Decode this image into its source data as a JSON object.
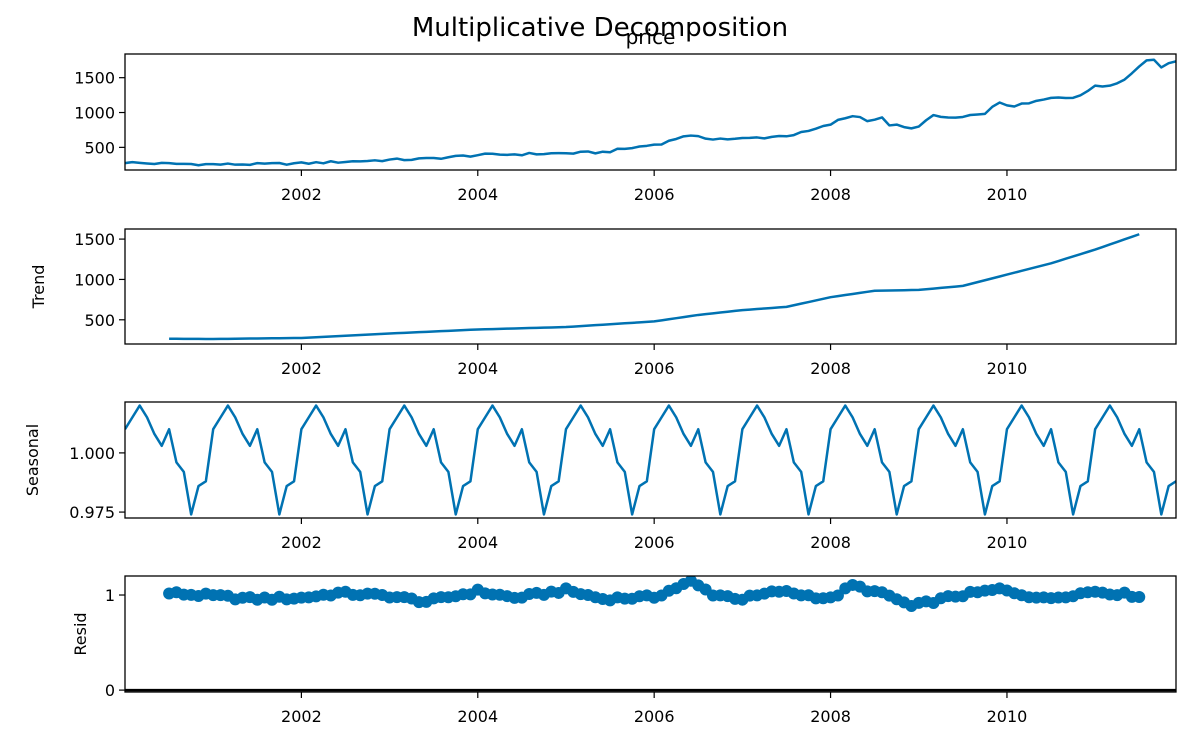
{
  "figure": {
    "suptitle": "Multiplicative Decomposition",
    "line_color": "#0072b2",
    "zero_line_color": "#000000"
  },
  "chart_data": [
    {
      "type": "line",
      "title": "price",
      "xlabel": "",
      "ylabel": "",
      "x_start": "2000-01",
      "x_end": "2011-12",
      "x_ticks": [
        "2002",
        "2004",
        "2006",
        "2008",
        "2010"
      ],
      "y_ticks": [
        "500",
        "1000",
        "1500"
      ],
      "ylim": [
        175,
        1840
      ],
      "grid": false,
      "series": [
        {
          "anchors": [
            [
              "2000-01",
              285
            ],
            [
              "2000-04",
              270
            ],
            [
              "2000-07",
              265
            ],
            [
              "2000-10",
              260
            ],
            [
              "2001-01",
              255
            ],
            [
              "2001-07",
              258
            ],
            [
              "2002-01",
              270
            ],
            [
              "2002-07",
              295
            ],
            [
              "2003-01",
              320
            ],
            [
              "2003-06",
              335
            ],
            [
              "2004-01",
              390
            ],
            [
              "2004-06",
              400
            ],
            [
              "2005-01",
              415
            ],
            [
              "2005-06",
              430
            ],
            [
              "2006-01",
              540
            ],
            [
              "2006-03",
              585
            ],
            [
              "2006-05",
              670
            ],
            [
              "2006-07",
              640
            ],
            [
              "2006-12",
              615
            ],
            [
              "2007-06",
              660
            ],
            [
              "2007-09",
              700
            ],
            [
              "2007-12",
              790
            ],
            [
              "2008-03",
              920
            ],
            [
              "2008-04",
              960
            ],
            [
              "2008-06",
              900
            ],
            [
              "2008-08",
              910
            ],
            [
              "2008-09",
              830
            ],
            [
              "2008-12",
              760
            ],
            [
              "2009-03",
              940
            ],
            [
              "2009-06",
              920
            ],
            [
              "2009-09",
              950
            ],
            [
              "2009-12",
              1120
            ],
            [
              "2010-03",
              1100
            ],
            [
              "2010-06",
              1180
            ],
            [
              "2010-08",
              1210
            ],
            [
              "2010-10",
              1230
            ],
            [
              "2011-01",
              1360
            ],
            [
              "2011-03",
              1400
            ],
            [
              "2011-06",
              1560
            ],
            [
              "2011-08",
              1760
            ],
            [
              "2011-09",
              1770
            ],
            [
              "2011-10",
              1680
            ],
            [
              "2011-11",
              1740
            ],
            [
              "2011-12",
              1700
            ]
          ]
        }
      ]
    },
    {
      "type": "line",
      "title": "",
      "xlabel": "",
      "ylabel": "Trend",
      "x_start": "2000-01",
      "x_end": "2011-12",
      "x_ticks": [
        "2002",
        "2004",
        "2006",
        "2008",
        "2010"
      ],
      "y_ticks": [
        "500",
        "1000",
        "1500"
      ],
      "ylim": [
        200,
        1625
      ],
      "grid": false,
      "series": [
        {
          "anchors": [
            [
              "2000-07",
              265
            ],
            [
              "2001-01",
              262
            ],
            [
              "2002-01",
              275
            ],
            [
              "2003-01",
              330
            ],
            [
              "2004-01",
              380
            ],
            [
              "2005-01",
              410
            ],
            [
              "2006-01",
              480
            ],
            [
              "2006-07",
              560
            ],
            [
              "2007-01",
              620
            ],
            [
              "2007-07",
              660
            ],
            [
              "2008-01",
              780
            ],
            [
              "2008-07",
              860
            ],
            [
              "2009-01",
              870
            ],
            [
              "2009-07",
              920
            ],
            [
              "2010-01",
              1060
            ],
            [
              "2010-07",
              1200
            ],
            [
              "2011-01",
              1370
            ],
            [
              "2011-07",
              1560
            ]
          ]
        }
      ]
    },
    {
      "type": "line",
      "title": "",
      "xlabel": "",
      "ylabel": "Seasonal",
      "x_start": "2000-01",
      "x_end": "2011-12",
      "x_ticks": [
        "2002",
        "2004",
        "2006",
        "2008",
        "2010"
      ],
      "y_ticks": [
        "0.975",
        "1.000"
      ],
      "ylim": [
        0.9725,
        1.0215
      ],
      "grid": false,
      "series": [
        {
          "monthly_factors": [
            1.01,
            1.015,
            1.02,
            1.015,
            1.008,
            1.003,
            1.01,
            0.996,
            0.992,
            0.974,
            0.986,
            0.988
          ]
        }
      ]
    },
    {
      "type": "scatter",
      "title": "",
      "xlabel": "",
      "ylabel": "Resid",
      "x_start": "2000-01",
      "x_end": "2011-12",
      "x_ticks": [
        "2002",
        "2004",
        "2006",
        "2008",
        "2010"
      ],
      "y_ticks": [
        "0",
        "1"
      ],
      "ylim": [
        -0.02,
        1.2
      ],
      "zero_line": 0,
      "grid": false,
      "series": [
        {
          "anchors": [
            [
              "2000-07",
              1.02
            ],
            [
              "2001-01",
              0.99
            ],
            [
              "2001-06",
              0.96
            ],
            [
              "2002-01",
              0.97
            ],
            [
              "2002-06",
              1.02
            ],
            [
              "2003-01",
              0.99
            ],
            [
              "2003-06",
              0.93
            ],
            [
              "2004-01",
              1.04
            ],
            [
              "2004-06",
              0.97
            ],
            [
              "2005-01",
              1.05
            ],
            [
              "2005-06",
              0.96
            ],
            [
              "2006-01",
              0.98
            ],
            [
              "2006-06",
              1.14
            ],
            [
              "2006-09",
              1.01
            ],
            [
              "2007-01",
              0.96
            ],
            [
              "2007-06",
              1.04
            ],
            [
              "2008-01",
              0.96
            ],
            [
              "2008-04",
              1.1
            ],
            [
              "2008-09",
              0.99
            ],
            [
              "2008-12",
              0.88
            ],
            [
              "2009-06",
              0.99
            ],
            [
              "2009-12",
              1.06
            ],
            [
              "2010-06",
              0.96
            ],
            [
              "2011-01",
              1.04
            ],
            [
              "2011-07",
              0.99
            ]
          ]
        }
      ]
    }
  ]
}
